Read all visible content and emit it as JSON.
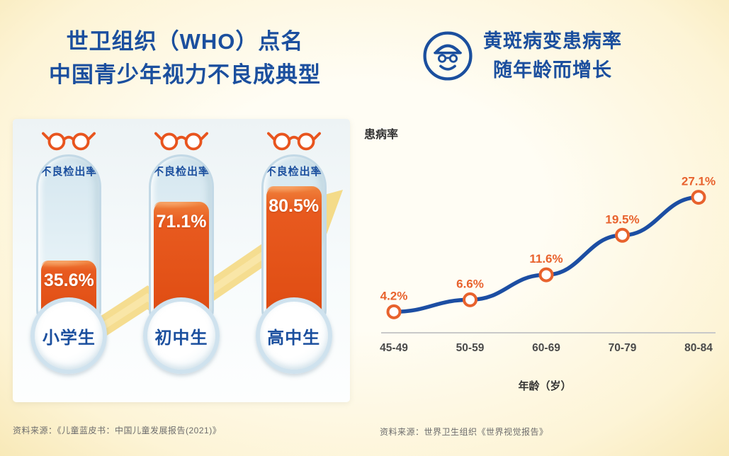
{
  "page": {
    "bg": "#fdf4d6",
    "accent_blue": "#1b4f9e",
    "accent_orange": "#e8571c"
  },
  "left": {
    "title_line1": "世卫组织（WHO）点名",
    "title_line2": "中国青少年视力不良成典型",
    "tube_label": "不良检出率",
    "tubes": [
      {
        "group": "小学生",
        "value": "35.6%",
        "pct": 35.6
      },
      {
        "group": "初中生",
        "value": "71.1%",
        "pct": 71.1
      },
      {
        "group": "高中生",
        "value": "80.5%",
        "pct": 80.5
      }
    ],
    "source": "资料来源：《儿童蓝皮书：中国儿童发展报告(2021)》"
  },
  "right": {
    "title_line1": "黄斑病变患病率",
    "title_line2": "随年龄而增长",
    "ylabel": "患病率",
    "xlabel": "年龄（岁）",
    "source": "资料来源：世界卫生组织《世界视觉报告》"
  },
  "icons": {
    "glasses": "glasses-icon",
    "elderly": "elderly-person-icon",
    "growth_arrow": "growth-arrow-icon"
  },
  "chart_data": {
    "type": "line",
    "title": "黄斑病变患病率随年龄而增长",
    "categories": [
      "45-49",
      "50-59",
      "60-69",
      "70-79",
      "80-84"
    ],
    "values": [
      4.2,
      6.6,
      11.6,
      19.5,
      27.1
    ],
    "labels": [
      "4.2%",
      "6.6%",
      "11.6%",
      "19.5%",
      "27.1%"
    ],
    "xlabel": "年龄（岁）",
    "ylabel": "患病率",
    "ylim": [
      0,
      32
    ],
    "grid": false,
    "legend": "none",
    "line_color": "#1c4ea3",
    "marker_fill": "#ffffff",
    "marker_color": "#e8622d",
    "label_color": "#e8622d",
    "axis_color": "#c9c9c9",
    "tick_color": "#4a4a4a"
  }
}
